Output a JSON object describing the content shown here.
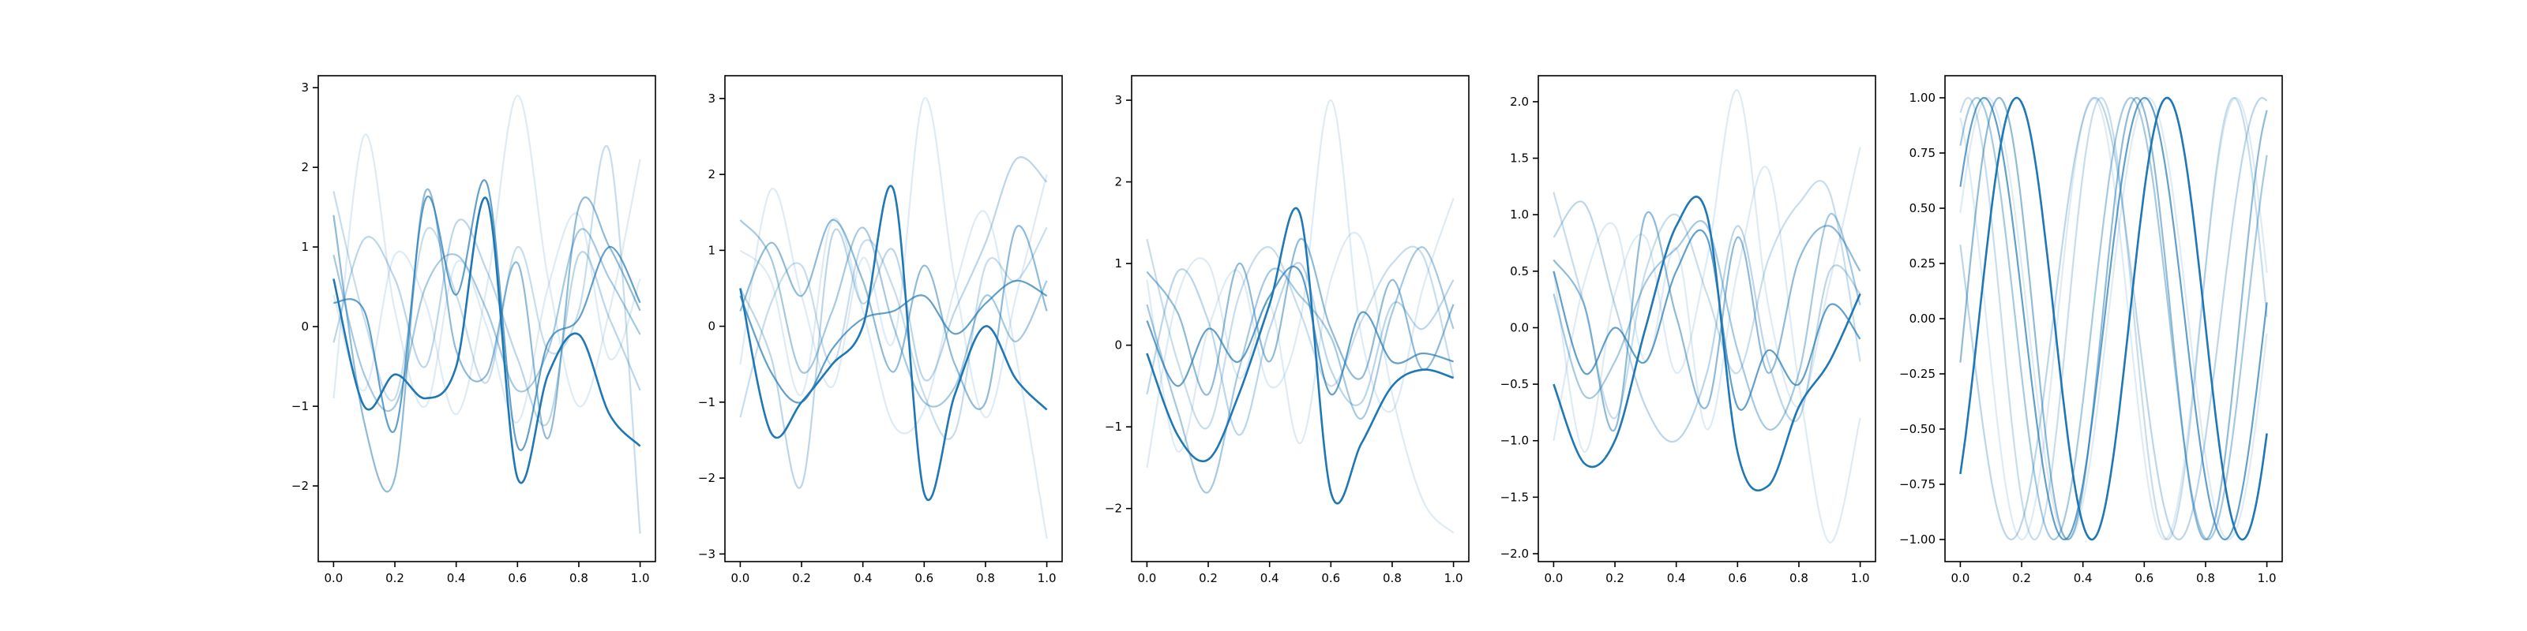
{
  "colors": {
    "series": "#1f77b4",
    "frame": "#000000",
    "background": "#ffffff"
  },
  "chart_data": [
    {
      "type": "line",
      "title": "",
      "xlabel": "",
      "ylabel": "",
      "xlim": [
        -0.05,
        1.05
      ],
      "ylim": [
        -2.95,
        3.15
      ],
      "xticks": [
        "0.0",
        "0.2",
        "0.4",
        "0.6",
        "0.8",
        "1.0"
      ],
      "yticks": [
        "-2",
        "-1",
        "0",
        "1",
        "2",
        "3"
      ],
      "grid": false,
      "x": [
        0.0,
        0.1,
        0.2,
        0.3,
        0.4,
        0.5,
        0.6,
        0.7,
        0.8,
        0.9,
        1.0
      ],
      "series": [
        {
          "values": [
            0.4,
            -0.8,
            0.9,
            0.3,
            -1.1,
            0.5,
            2.9,
            0.6,
            -1.0,
            0.2,
            2.1
          ],
          "opacity": 0.15
        },
        {
          "values": [
            -0.9,
            2.4,
            0.2,
            -1.0,
            0.8,
            0.0,
            -1.2,
            0.5,
            1.4,
            -0.4,
            0.6
          ],
          "opacity": 0.15
        },
        {
          "values": [
            1.7,
            0.1,
            -0.9,
            1.2,
            0.4,
            -0.7,
            1.0,
            -0.3,
            0.2,
            2.2,
            -2.6
          ],
          "opacity": 0.25
        },
        {
          "values": [
            -0.2,
            1.1,
            0.6,
            -0.5,
            1.3,
            0.7,
            -0.4,
            -1.2,
            0.9,
            0.1,
            -0.8
          ],
          "opacity": 0.3
        },
        {
          "values": [
            0.9,
            -0.6,
            -1.0,
            0.5,
            0.9,
            0.2,
            -0.8,
            -0.3,
            1.2,
            0.6,
            -0.1
          ],
          "opacity": 0.4
        },
        {
          "values": [
            1.4,
            -1.2,
            -1.9,
            1.7,
            -0.3,
            -0.6,
            0.8,
            -1.4,
            1.5,
            1.0,
            0.2
          ],
          "opacity": 0.5
        },
        {
          "values": [
            0.3,
            0.2,
            -1.3,
            1.6,
            0.4,
            1.8,
            -1.5,
            -0.2,
            0.1,
            1.0,
            0.3
          ],
          "opacity": 0.7
        },
        {
          "values": [
            0.6,
            -1.0,
            -0.6,
            -0.9,
            -0.5,
            1.6,
            -1.9,
            -0.6,
            -0.1,
            -1.1,
            -1.5
          ],
          "opacity": 1.0
        }
      ]
    },
    {
      "type": "line",
      "title": "",
      "xlabel": "",
      "ylabel": "",
      "xlim": [
        -0.05,
        1.05
      ],
      "ylim": [
        -3.1,
        3.3
      ],
      "xticks": [
        "0.0",
        "0.2",
        "0.4",
        "0.6",
        "0.8",
        "1.0"
      ],
      "yticks": [
        "-3",
        "-2",
        "-1",
        "0",
        "1",
        "2",
        "3"
      ],
      "grid": false,
      "x": [
        0.0,
        0.1,
        0.2,
        0.3,
        0.4,
        0.5,
        0.6,
        0.7,
        0.8,
        0.9,
        1.0
      ],
      "series": [
        {
          "values": [
            -0.5,
            1.8,
            0.4,
            -0.8,
            0.9,
            -0.2,
            3.0,
            0.6,
            -1.2,
            0.4,
            2.0
          ],
          "opacity": 0.15
        },
        {
          "values": [
            1.0,
            0.6,
            -0.9,
            1.4,
            0.2,
            -1.3,
            -1.1,
            0.5,
            1.5,
            -0.4,
            -2.8
          ],
          "opacity": 0.15
        },
        {
          "values": [
            -1.2,
            0.3,
            0.8,
            -0.5,
            1.1,
            0.5,
            -0.9,
            -1.4,
            0.8,
            0.6,
            1.3
          ],
          "opacity": 0.25
        },
        {
          "values": [
            0.5,
            -0.4,
            -2.1,
            1.2,
            0.3,
            1.0,
            -0.7,
            0.2,
            1.1,
            2.2,
            1.9
          ],
          "opacity": 0.3
        },
        {
          "values": [
            1.4,
            0.9,
            -0.6,
            0.2,
            1.3,
            0.0,
            -1.0,
            -0.8,
            0.4,
            -0.2,
            0.6
          ],
          "opacity": 0.4
        },
        {
          "values": [
            0.2,
            1.1,
            0.4,
            1.4,
            0.6,
            -0.6,
            0.8,
            -0.5,
            -1.0,
            1.3,
            0.2
          ],
          "opacity": 0.5
        },
        {
          "values": [
            0.4,
            -0.6,
            -1.0,
            -0.3,
            0.1,
            0.2,
            0.4,
            -0.1,
            0.3,
            0.6,
            0.4
          ],
          "opacity": 0.7
        },
        {
          "values": [
            0.5,
            -1.4,
            -1.0,
            -0.5,
            0.0,
            1.8,
            -2.2,
            -0.9,
            0.0,
            -0.7,
            -1.1
          ],
          "opacity": 1.0
        }
      ]
    },
    {
      "type": "line",
      "title": "",
      "xlabel": "",
      "ylabel": "",
      "xlim": [
        -0.05,
        1.05
      ],
      "ylim": [
        -2.65,
        3.3
      ],
      "xticks": [
        "0.0",
        "0.2",
        "0.4",
        "0.6",
        "0.8",
        "1.0"
      ],
      "yticks": [
        "-2",
        "-1",
        "0",
        "1",
        "2",
        "3"
      ],
      "grid": false,
      "x": [
        0.0,
        0.1,
        0.2,
        0.3,
        0.4,
        0.5,
        0.6,
        0.7,
        0.8,
        0.9,
        1.0
      ],
      "series": [
        {
          "values": [
            0.8,
            -1.3,
            0.2,
            0.9,
            -0.5,
            0.3,
            3.0,
            0.1,
            -0.8,
            0.7,
            1.8
          ],
          "opacity": 0.15
        },
        {
          "values": [
            -1.5,
            0.6,
            1.0,
            -0.4,
            0.5,
            -1.2,
            0.8,
            1.3,
            -0.6,
            -1.9,
            -2.3
          ],
          "opacity": 0.15
        },
        {
          "values": [
            1.3,
            -0.2,
            -1.0,
            0.6,
            1.2,
            0.4,
            -0.5,
            0.3,
            1.0,
            1.1,
            -0.4
          ],
          "opacity": 0.25
        },
        {
          "values": [
            -0.6,
            0.9,
            0.3,
            -1.1,
            0.2,
            1.0,
            -0.3,
            -0.7,
            0.5,
            0.2,
            0.8
          ],
          "opacity": 0.3
        },
        {
          "values": [
            0.5,
            -0.8,
            -1.8,
            -0.3,
            0.9,
            0.6,
            0.1,
            -0.9,
            0.4,
            1.2,
            0.2
          ],
          "opacity": 0.4
        },
        {
          "values": [
            0.9,
            0.4,
            -0.6,
            1.0,
            -0.2,
            1.3,
            0.2,
            -0.4,
            0.8,
            -0.3,
            0.5
          ],
          "opacity": 0.5
        },
        {
          "values": [
            0.3,
            -0.5,
            0.2,
            -0.2,
            0.6,
            0.9,
            -0.6,
            0.4,
            -0.2,
            -0.1,
            -0.2
          ],
          "opacity": 0.7
        },
        {
          "values": [
            -0.1,
            -1.1,
            -1.4,
            -0.6,
            0.5,
            1.6,
            -1.8,
            -1.2,
            -0.5,
            -0.3,
            -0.4
          ],
          "opacity": 1.0
        }
      ]
    },
    {
      "type": "line",
      "title": "",
      "xlabel": "",
      "ylabel": "",
      "xlim": [
        -0.05,
        1.05
      ],
      "ylim": [
        -2.07,
        2.23
      ],
      "xticks": [
        "0.0",
        "0.2",
        "0.4",
        "0.6",
        "0.8",
        "1.0"
      ],
      "yticks": [
        "-2.0",
        "-1.5",
        "-1.0",
        "-0.5",
        "0.0",
        "0.5",
        "1.0",
        "1.5",
        "2.0"
      ],
      "grid": false,
      "x": [
        0.0,
        0.1,
        0.2,
        0.3,
        0.4,
        0.5,
        0.6,
        0.7,
        0.8,
        0.9,
        1.0
      ],
      "series": [
        {
          "values": [
            0.5,
            -1.1,
            0.3,
            0.8,
            -0.4,
            0.6,
            2.1,
            0.2,
            -0.7,
            0.4,
            1.6
          ],
          "opacity": 0.15
        },
        {
          "values": [
            -1.0,
            0.4,
            0.9,
            -0.3,
            0.7,
            -0.9,
            0.5,
            1.4,
            -0.5,
            -1.9,
            -0.8
          ],
          "opacity": 0.15
        },
        {
          "values": [
            1.2,
            0.2,
            -0.8,
            0.5,
            1.0,
            0.3,
            -0.4,
            0.6,
            1.1,
            1.2,
            -0.3
          ],
          "opacity": 0.25
        },
        {
          "values": [
            0.8,
            1.1,
            0.2,
            -0.7,
            -1.0,
            -0.4,
            0.9,
            -0.3,
            -0.8,
            0.5,
            0.3
          ],
          "opacity": 0.3
        },
        {
          "values": [
            0.3,
            -0.6,
            -0.3,
            0.4,
            0.7,
            0.9,
            -0.2,
            -0.9,
            -0.4,
            1.0,
            0.2
          ],
          "opacity": 0.4
        },
        {
          "values": [
            0.6,
            0.2,
            -0.9,
            1.0,
            0.1,
            -0.7,
            0.8,
            -0.4,
            0.6,
            0.9,
            0.5
          ],
          "opacity": 0.5
        },
        {
          "values": [
            0.5,
            -0.4,
            0.0,
            -0.3,
            0.5,
            0.8,
            -0.7,
            -0.2,
            -0.5,
            0.2,
            -0.1
          ],
          "opacity": 0.7
        },
        {
          "values": [
            -0.5,
            -1.2,
            -1.0,
            0.0,
            0.9,
            1.0,
            -1.1,
            -1.4,
            -0.7,
            -0.3,
            0.3
          ],
          "opacity": 1.0
        }
      ]
    },
    {
      "type": "line",
      "title": "",
      "xlabel": "",
      "ylabel": "",
      "xlim": [
        -0.05,
        1.05
      ],
      "ylim": [
        -1.1,
        1.1
      ],
      "xticks": [
        "0.0",
        "0.2",
        "0.4",
        "0.6",
        "0.8",
        "1.0"
      ],
      "yticks": [
        "-1.00",
        "-0.75",
        "-0.50",
        "-0.25",
        "0.00",
        "0.25",
        "0.50",
        "0.75",
        "1.00"
      ],
      "grid": false,
      "function": "y = sin(frequency * x + phase)",
      "series": [
        {
          "frequency": 13.5,
          "phase": 2.0,
          "opacity": 0.15
        },
        {
          "frequency": 12.0,
          "phase": 0.5,
          "opacity": 0.15
        },
        {
          "frequency": 14.5,
          "phase": 1.2,
          "opacity": 0.25
        },
        {
          "frequency": 11.5,
          "phase": 2.8,
          "opacity": 0.3
        },
        {
          "frequency": 12.5,
          "phase": 0.9,
          "opacity": 0.4
        },
        {
          "frequency": 14.0,
          "phase": -0.2,
          "opacity": 0.5
        },
        {
          "frequency": 12.0,
          "phase": 0.64,
          "opacity": 0.7
        },
        {
          "frequency": 12.8,
          "phase": -0.78,
          "opacity": 1.0
        }
      ]
    }
  ]
}
